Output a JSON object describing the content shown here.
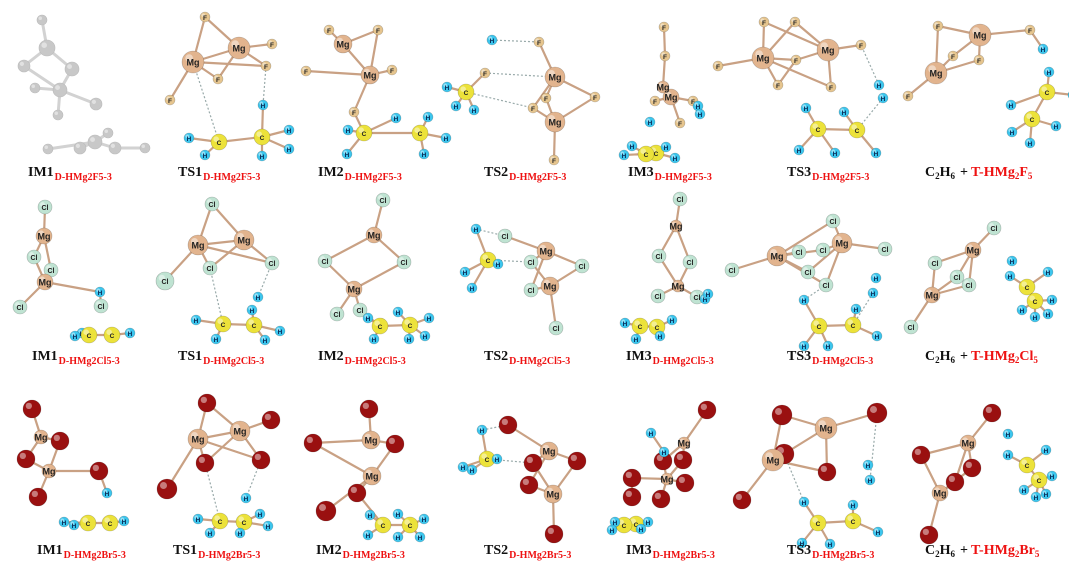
{
  "row1": {
    "captions": [
      {
        "main": "IM1",
        "sub": "D-HMg2F5-3"
      },
      {
        "main": "TS1",
        "sub": "D-HMg2F5-3"
      },
      {
        "main": "IM2",
        "sub": "D-HMg2F5-3"
      },
      {
        "main": "TS2",
        "sub": "D-HMg2F5-3"
      },
      {
        "main": "IM3",
        "sub": "D-HMg2F5-3"
      },
      {
        "main": "TS3",
        "sub": "D-HMg2F5-3"
      }
    ],
    "product": {
      "c": "C",
      "c_n": "2",
      "h": "H",
      "h_n": "6",
      "plus": "+",
      "t": "T-HMg",
      "t_n1": "2",
      "x": "F",
      "t_n2": "5"
    }
  },
  "row2": {
    "captions": [
      {
        "main": "IM1",
        "sub": "D-HMg2Cl5-3"
      },
      {
        "main": "TS1",
        "sub": "D-HMg2Cl5-3"
      },
      {
        "main": "IM2",
        "sub": "D-HMg2Cl5-3"
      },
      {
        "main": "TS2",
        "sub": "D-HMg2Cl5-3"
      },
      {
        "main": "IM3",
        "sub": "D-HMg2Cl5-3"
      },
      {
        "main": "TS3",
        "sub": "D-HMg2Cl5-3"
      }
    ],
    "product": {
      "c": "C",
      "c_n": "2",
      "h": "H",
      "h_n": "6",
      "plus": "+",
      "t": "T-HMg",
      "t_n1": "2",
      "x": "Cl",
      "t_n2": "5"
    }
  },
  "row3": {
    "captions": [
      {
        "main": "IM1",
        "sub": "D-HMg2Br5-3"
      },
      {
        "main": "TS1",
        "sub": "D-HMg2Br5-3"
      },
      {
        "main": "IM2",
        "sub": "D-HMg2Br5-3"
      },
      {
        "main": "TS2",
        "sub": "D-HMg2Br5-3"
      },
      {
        "main": "IM3",
        "sub": "D-HMg2Br5-3"
      },
      {
        "main": "TS3",
        "sub": "D-HMg2Br5-3"
      }
    ],
    "product": {
      "c": "C",
      "c_n": "2",
      "h": "H",
      "h_n": "6",
      "plus": "+",
      "t": "T-HMg",
      "t_n1": "2",
      "x": "Br",
      "t_n2": "5"
    }
  },
  "atom_labels": {
    "mg": "Mg",
    "c": "C",
    "h": "H",
    "f": "F",
    "cl": "Cl"
  },
  "colors": {
    "mg": "#e2b48e",
    "f": "#e6c58e",
    "cl": "#bfe3d2",
    "br": "#9a1010",
    "c": "#ece23a",
    "h": "#3cc6ee",
    "ghost": "#c8c8c8",
    "caption_sub": "#e11111"
  }
}
